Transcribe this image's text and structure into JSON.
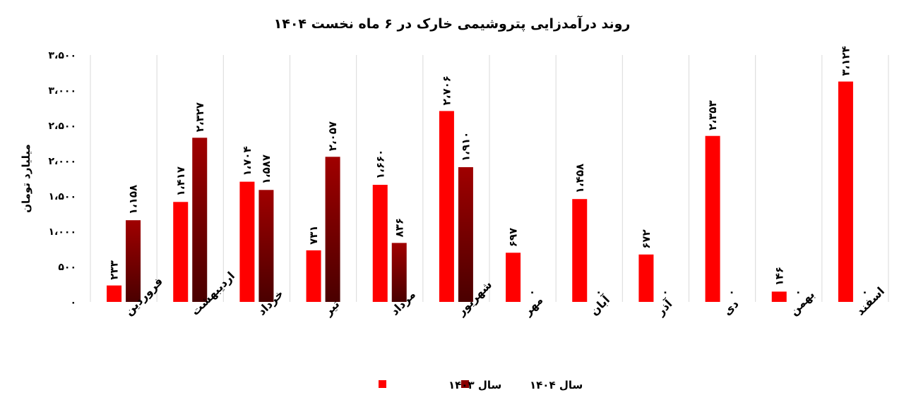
{
  "chart_data": {
    "type": "bar",
    "title": "روند درآمدزایی پتروشیمی خارک در ۶ ماه نخست ۱۴۰۴",
    "ylabel": "میلیارد تومان",
    "xlabel": "",
    "ylim": [
      0,
      3500
    ],
    "yticks": [
      0,
      500,
      1000,
      1500,
      2000,
      2500,
      3000,
      3500
    ],
    "ytick_labels": [
      "۰",
      "۵۰۰",
      "۱،۰۰۰",
      "۱،۵۰۰",
      "۲،۰۰۰",
      "۲،۵۰۰",
      "۳،۰۰۰",
      "۳،۵۰۰"
    ],
    "grid": false,
    "category_separators": true,
    "legend_position": "bottom",
    "categories": [
      "فروردین",
      "اردیبهشت",
      "خرداد",
      "تیر",
      "مرداد",
      "شهریور",
      "مهر",
      "آبان",
      "آذر",
      "دی",
      "بهمن",
      "اسفند"
    ],
    "series": [
      {
        "name": "سال ۱۴۰۳",
        "color": "#ff0000",
        "values": [
          233,
          1417,
          1704,
          731,
          1660,
          2706,
          697,
          1458,
          672,
          2353,
          146,
          3124
        ],
        "labels": [
          "۲۳۳",
          "۱،۴۱۷",
          "۱،۷۰۴",
          "۷۳۱",
          "۱،۶۶۰",
          "۲،۷۰۶",
          "۶۹۷",
          "۱،۴۵۸",
          "۶۷۲",
          "۲،۳۵۳",
          "۱۴۶",
          "۳،۱۲۴"
        ]
      },
      {
        "name": "سال ۱۴۰۴",
        "color": "#8b0000",
        "values": [
          1158,
          2327,
          1587,
          2057,
          836,
          1910,
          0,
          0,
          0,
          0,
          0,
          0
        ],
        "labels": [
          "۱،۱۵۸",
          "۲،۳۲۷",
          "۱،۵۸۷",
          "۲،۰۵۷",
          "۸۳۶",
          "۱،۹۱۰",
          "۰",
          "۰",
          "۰",
          "۰",
          "۰",
          "۰"
        ]
      }
    ]
  }
}
